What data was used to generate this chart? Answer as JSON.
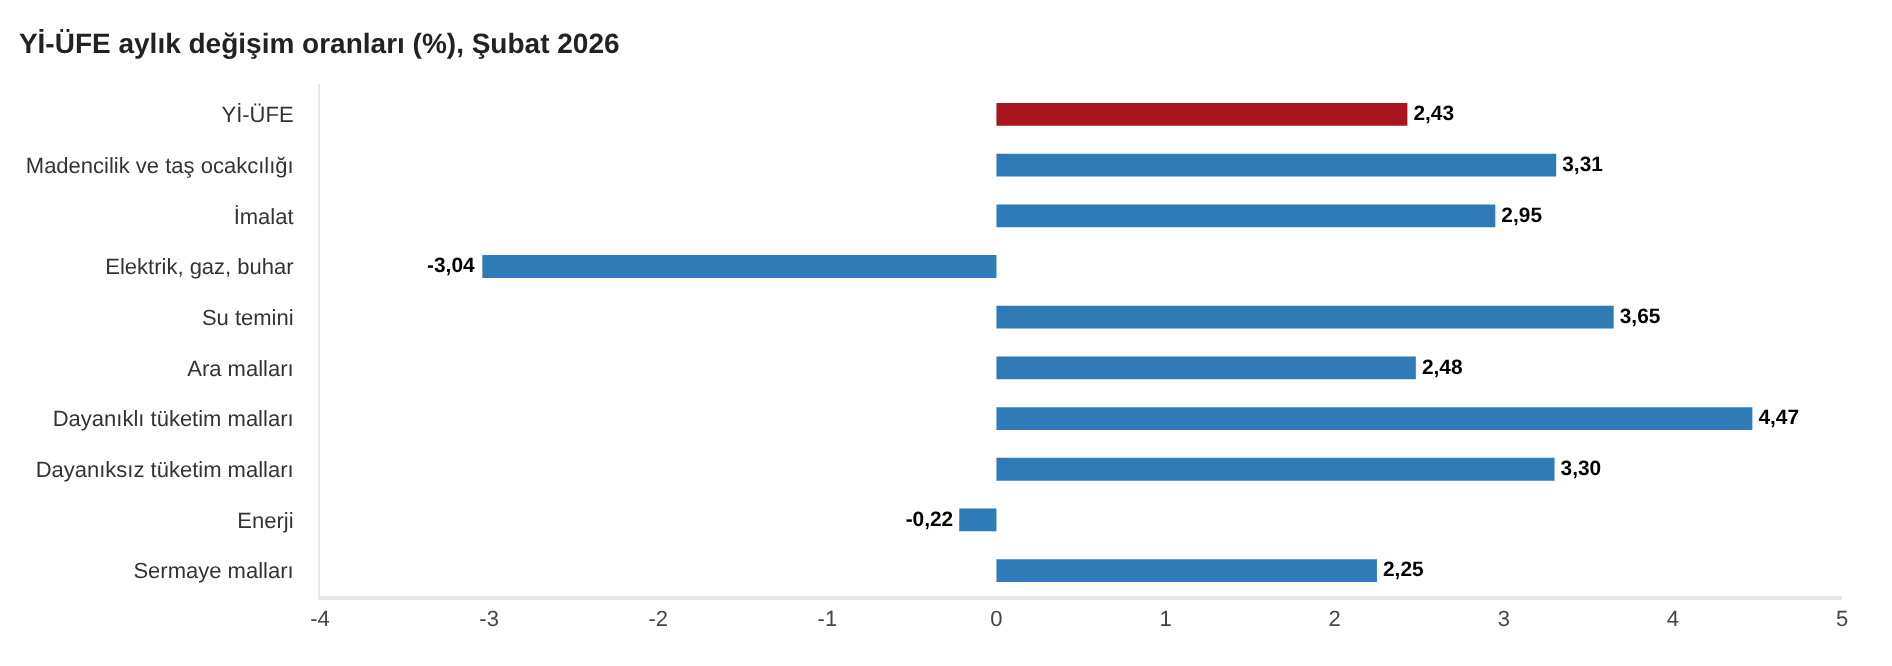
{
  "chart_data": {
    "type": "bar",
    "orientation": "horizontal",
    "title": "Yİ-ÜFE aylık değişim oranları (%), Şubat 2026",
    "categories": [
      "Yİ-ÜFE",
      "Madencilik ve taş ocakcılığı",
      "İmalat",
      "Elektrik, gaz, buhar",
      "Su temini",
      "Ara malları",
      "Dayanıklı tüketim malları",
      "Dayanıksız tüketim malları",
      "Enerji",
      "Sermaye malları"
    ],
    "values": [
      2.43,
      3.31,
      2.95,
      -3.04,
      3.65,
      2.48,
      4.47,
      3.3,
      -0.22,
      2.25
    ],
    "value_labels": [
      "2,43",
      "3,31",
      "2,95",
      "-3,04",
      "3,65",
      "2,48",
      "4,47",
      "3,30",
      "-0,22",
      "2,25"
    ],
    "colors": [
      "#a8151c",
      "#2e7bb8",
      "#2e7bb8",
      "#2e7bb8",
      "#2e7bb8",
      "#2e7bb8",
      "#2e7bb8",
      "#2e7bb8",
      "#2e7bb8",
      "#2e7bb8"
    ],
    "xlim": [
      -4,
      5
    ],
    "xticks": [
      -4,
      -3,
      -2,
      -1,
      0,
      1,
      2,
      3,
      4,
      5
    ]
  }
}
